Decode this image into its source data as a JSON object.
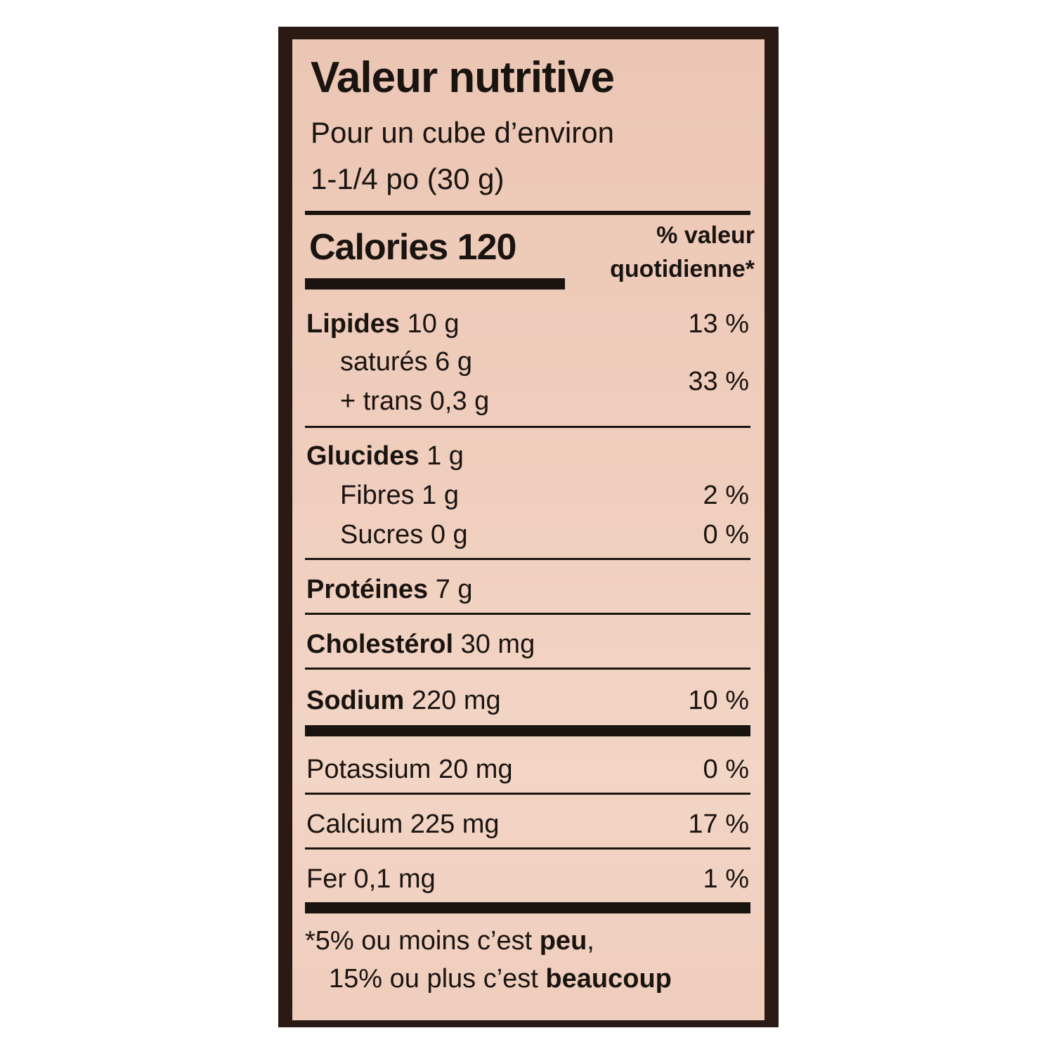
{
  "title": "Valeur nutritive",
  "serving": [
    "Pour un cube d’environ",
    "1-1/4 po (30 g)"
  ],
  "calories": "Calories 120",
  "dv_header": [
    "% valeur",
    "quotidienne*"
  ],
  "rows": {
    "lipides": {
      "name": "Lipides",
      "amount": "10 g",
      "pct": "13 %"
    },
    "satures": {
      "text": "saturés 6 g"
    },
    "trans": {
      "text": "+ trans 0,3 g"
    },
    "sat_trans_pct": "33 %",
    "glucides": {
      "name": "Glucides",
      "amount": "1 g"
    },
    "fibres": {
      "text": "Fibres 1 g",
      "pct": "2 %"
    },
    "sucres": {
      "text": "Sucres 0 g",
      "pct": "0 %"
    },
    "proteines": {
      "name": "Protéines",
      "amount": "7 g"
    },
    "cholesterol": {
      "name": "Cholestérol",
      "amount": "30 mg"
    },
    "sodium": {
      "name": "Sodium",
      "amount": "220 mg",
      "pct": "10 %"
    },
    "potassium": {
      "text": "Potassium 20 mg",
      "pct": "0 %"
    },
    "calcium": {
      "text": "Calcium 225 mg",
      "pct": "17 %"
    },
    "fer": {
      "text": "Fer 0,1 mg",
      "pct": "1 %"
    }
  },
  "footnote": {
    "line1_a": "*5% ou moins c’est ",
    "line1_b": "peu",
    "line1_c": ",",
    "line2_a": "15% ou plus c’est ",
    "line2_b": "beaucoup"
  }
}
